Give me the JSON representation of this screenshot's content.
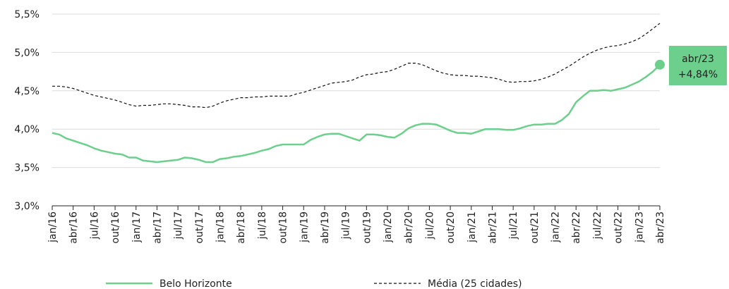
{
  "chart_data": {
    "type": "line",
    "categories": [
      "jan/16",
      null,
      null,
      "abr/16",
      null,
      null,
      "jul/16",
      null,
      null,
      "out/16",
      null,
      null,
      "jan/17",
      null,
      null,
      "abr/17",
      null,
      null,
      "jul/17",
      null,
      null,
      "out/17",
      null,
      null,
      "jan/18",
      null,
      null,
      "abr/18",
      null,
      null,
      "jul/18",
      null,
      null,
      "out/18",
      null,
      null,
      "jan/19",
      null,
      null,
      "abr/19",
      null,
      null,
      "jul/19",
      null,
      null,
      "out/19",
      null,
      null,
      "jan/20",
      null,
      null,
      "abr/20",
      null,
      null,
      "jul/20",
      null,
      null,
      "out/20",
      null,
      null,
      "jan/21",
      null,
      null,
      "abr/21",
      null,
      null,
      "jul/21",
      null,
      null,
      "out/21",
      null,
      null,
      "jan/22",
      null,
      null,
      "abr/22",
      null,
      null,
      "jul/22",
      null,
      null,
      "out/22",
      null,
      null,
      "jan/23",
      null,
      null,
      "abr/23"
    ],
    "series": [
      {
        "name": "Belo Horizonte",
        "color": "#6ccf8b",
        "style": "solid",
        "values": [
          3.95,
          3.93,
          3.88,
          3.85,
          3.82,
          3.79,
          3.75,
          3.72,
          3.7,
          3.68,
          3.67,
          3.63,
          3.63,
          3.59,
          3.58,
          3.57,
          3.58,
          3.59,
          3.6,
          3.63,
          3.62,
          3.6,
          3.57,
          3.57,
          3.61,
          3.62,
          3.64,
          3.65,
          3.67,
          3.69,
          3.72,
          3.74,
          3.78,
          3.8,
          3.8,
          3.8,
          3.8,
          3.86,
          3.9,
          3.93,
          3.94,
          3.94,
          3.91,
          3.88,
          3.85,
          3.93,
          3.93,
          3.92,
          3.9,
          3.89,
          3.94,
          4.01,
          4.05,
          4.07,
          4.07,
          4.06,
          4.02,
          3.98,
          3.95,
          3.95,
          3.94,
          3.97,
          4.0,
          4.0,
          4.0,
          3.99,
          3.99,
          4.01,
          4.04,
          4.06,
          4.06,
          4.07,
          4.07,
          4.12,
          4.2,
          4.35,
          4.43,
          4.5,
          4.5,
          4.51,
          4.5,
          4.52,
          4.54,
          4.58,
          4.62,
          4.68,
          4.75,
          4.84
        ],
        "value_labels": [
          null,
          null,
          null,
          null,
          null,
          null,
          null,
          null,
          null,
          null,
          null,
          null,
          null,
          null,
          null,
          null,
          null,
          null,
          null,
          null,
          null,
          null,
          null,
          null,
          null,
          null,
          null,
          null,
          null,
          null,
          null,
          null,
          null,
          null,
          null,
          null,
          null,
          null,
          null,
          null,
          null,
          null,
          null,
          null,
          null,
          null,
          null,
          null,
          null,
          null,
          null,
          null,
          null,
          null,
          null,
          null,
          null,
          null,
          null,
          null,
          null,
          null,
          null,
          null,
          null,
          null,
          null,
          null,
          null,
          null,
          null,
          null,
          null,
          null,
          null,
          null,
          null,
          null,
          null,
          null,
          null,
          null,
          null,
          null,
          null,
          null,
          null,
          "+4,84%"
        ]
      },
      {
        "name": "Média (25 cidades)",
        "color": "#111111",
        "style": "dashed",
        "values": [
          4.56,
          4.56,
          4.55,
          4.53,
          4.5,
          4.47,
          4.44,
          4.42,
          4.4,
          4.38,
          4.35,
          4.32,
          4.3,
          4.31,
          4.31,
          4.32,
          4.33,
          4.33,
          4.32,
          4.31,
          4.29,
          4.29,
          4.28,
          4.3,
          4.34,
          4.37,
          4.39,
          4.41,
          4.41,
          4.42,
          4.42,
          4.43,
          4.43,
          4.43,
          4.43,
          4.46,
          4.48,
          4.51,
          4.54,
          4.57,
          4.6,
          4.61,
          4.62,
          4.64,
          4.68,
          4.71,
          4.72,
          4.74,
          4.75,
          4.78,
          4.82,
          4.86,
          4.86,
          4.84,
          4.8,
          4.76,
          4.73,
          4.71,
          4.7,
          4.7,
          4.69,
          4.69,
          4.68,
          4.67,
          4.65,
          4.62,
          4.61,
          4.62,
          4.62,
          4.63,
          4.65,
          4.68,
          4.72,
          4.77,
          4.82,
          4.88,
          4.94,
          4.99,
          5.03,
          5.06,
          5.08,
          5.09,
          5.11,
          5.14,
          5.18,
          5.24,
          5.31,
          5.38
        ]
      }
    ],
    "ylim": [
      3.0,
      5.5
    ],
    "yticks": [
      {
        "value": 3.0,
        "label": "3,0%"
      },
      {
        "value": 3.5,
        "label": "3,5%"
      },
      {
        "value": 4.0,
        "label": "4,0%"
      },
      {
        "value": 4.5,
        "label": "4,5%"
      },
      {
        "value": 5.0,
        "label": "5,0%"
      },
      {
        "value": 5.5,
        "label": "5,5%"
      }
    ],
    "grid": true,
    "legend": "bottom"
  }
}
